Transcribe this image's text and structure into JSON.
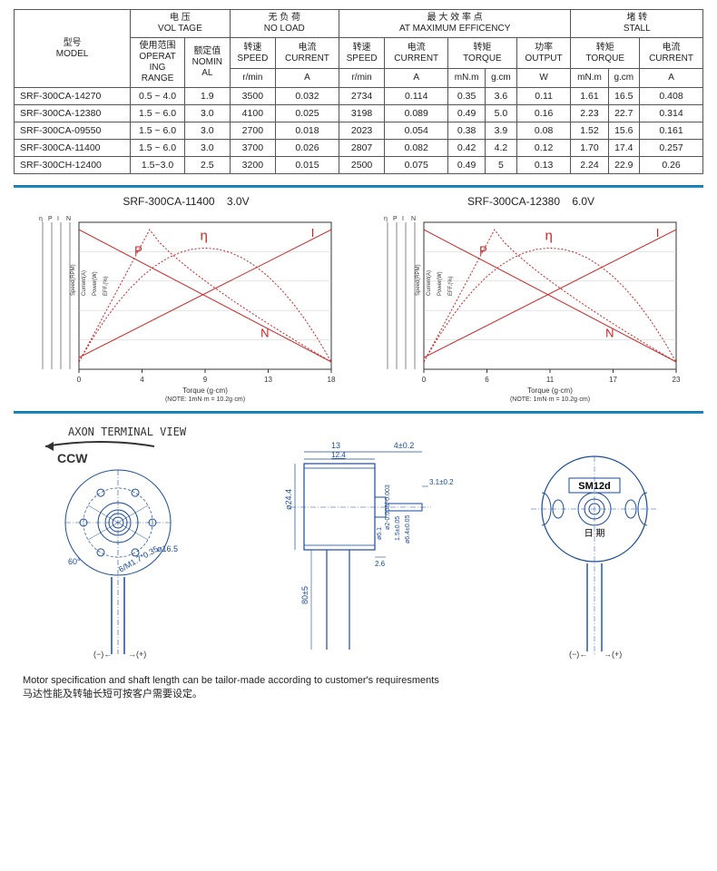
{
  "table": {
    "headers": {
      "model_cn": "型号",
      "model_en": "MODEL",
      "voltage_cn": "电 压",
      "voltage_en": "VOL TAGE",
      "noload_cn": "无 负 荷",
      "noload_en": "NO LOAD",
      "maxeff_cn": "最 大 效 率 点",
      "maxeff_en": "AT MAXIMUM EFFICENCY",
      "stall_cn": "堵 转",
      "stall_en": "STALL",
      "oper_range_cn": "使用范围",
      "oper_range_en1": "OPERAT",
      "oper_range_en2": "ING",
      "oper_range_en3": "RANGE",
      "nominal_cn": "额定值",
      "nominal_en1": "NOMIN",
      "nominal_en2": "AL",
      "speed_cn": "转速",
      "speed_en": "SPEED",
      "current_cn": "电流",
      "current_en": "CURRENT",
      "torque_cn": "转矩",
      "torque_en": "TORQUE",
      "output_cn": "功率",
      "output_en": "OUTPUT",
      "u_rmin": "r/min",
      "u_A": "A",
      "u_mNm": "mN.m",
      "u_gcm": "g.cm",
      "u_W": "W"
    },
    "rows": [
      {
        "model": "SRF-300CA-14270",
        "range": "0.5 ~ 4.0",
        "nom": "1.9",
        "nl_spd": "3500",
        "nl_cur": "0.032",
        "me_spd": "2734",
        "me_cur": "0.114",
        "me_tq_mn": "0.35",
        "me_tq_g": "3.6",
        "me_out": "0.11",
        "st_tq_mn": "1.61",
        "st_tq_g": "16.5",
        "st_cur": "0.408"
      },
      {
        "model": "SRF-300CA-12380",
        "range": "1.5 ~ 6.0",
        "nom": "3.0",
        "nl_spd": "4100",
        "nl_cur": "0.025",
        "me_spd": "3198",
        "me_cur": "0.089",
        "me_tq_mn": "0.49",
        "me_tq_g": "5.0",
        "me_out": "0.16",
        "st_tq_mn": "2.23",
        "st_tq_g": "22.7",
        "st_cur": "0.314"
      },
      {
        "model": "SRF-300CA-09550",
        "range": "1.5 ~ 6.0",
        "nom": "3.0",
        "nl_spd": "2700",
        "nl_cur": "0.018",
        "me_spd": "2023",
        "me_cur": "0.054",
        "me_tq_mn": "0.38",
        "me_tq_g": "3.9",
        "me_out": "0.08",
        "st_tq_mn": "1.52",
        "st_tq_g": "15.6",
        "st_cur": "0.161"
      },
      {
        "model": "SRF-300CA-11400",
        "range": "1.5 ~ 6.0",
        "nom": "3.0",
        "nl_spd": "3700",
        "nl_cur": "0.026",
        "me_spd": "2807",
        "me_cur": "0.082",
        "me_tq_mn": "0.42",
        "me_tq_g": "4.2",
        "me_out": "0.12",
        "st_tq_mn": "1.70",
        "st_tq_g": "17.4",
        "st_cur": "0.257"
      },
      {
        "model": "SRF-300CH-12400",
        "range": "1.5~3.0",
        "nom": "2.5",
        "nl_spd": "3200",
        "nl_cur": "0.015",
        "me_spd": "2500",
        "me_cur": "0.075",
        "me_tq_mn": "0.49",
        "me_tq_g": "5",
        "me_out": "0.13",
        "st_tq_mn": "2.24",
        "st_tq_g": "22.9",
        "st_cur": "0.26"
      }
    ]
  },
  "charts": {
    "left": {
      "title_model": "SRF-300CA-11400",
      "title_volt": "3.0V",
      "x_label": "Torque (g·cm)",
      "note": "(NOTE: 1mN·m = 10.2g·cm)",
      "x_ticks": [
        "0",
        "4",
        "9",
        "13",
        "18"
      ],
      "legend_P": "P",
      "legend_eta": "η",
      "legend_I": "I",
      "legend_N": "N",
      "y_left_labels": [
        "η",
        "P",
        "I",
        "N"
      ],
      "y_left_label_eff": "EFF.(%)",
      "y_left_label_pow": "Power(W)",
      "y_left_label_cur": "Current(A)",
      "y_left_label_spd": "Speed(RPM)"
    },
    "right": {
      "title_model": "SRF-300CA-12380",
      "title_volt": "6.0V",
      "x_label": "Torque (g·cm)",
      "note": "(NOTE: 1mN·m = 10.2g·cm)",
      "x_ticks": [
        "0",
        "6",
        "11",
        "17",
        "23"
      ],
      "legend_P": "P",
      "legend_eta": "η",
      "legend_I": "I",
      "legend_N": "N"
    },
    "colors": {
      "axis": "#333333",
      "grid": "#cccccc",
      "P_color": "#cc2222",
      "eta_color": "#cc2222",
      "I_color": "#cc2222",
      "N_color": "#cc2222",
      "dotted": "2,2"
    }
  },
  "diagrams": {
    "axon_title": "AXON TERMINAL VIEW",
    "ccw": "CCW",
    "dim_phi165": "ø16.5",
    "dim_6m17": "6/M1.7*0.35",
    "dim_60deg": "60°",
    "dim_13": "13",
    "dim_124": "12.4",
    "dim_4pm02": "4±0.2",
    "dim_31pm02": "3.1±0.2",
    "dim_244": "ø24.4",
    "dim_phi61": "ø6.1",
    "dim_phi2": "ø2-0.008/-0.003",
    "dim_26": "2.6",
    "dim_15pm005": "1.5±0.05",
    "dim_64pm005": "ø6.4±0.05",
    "dim_80pm5": "80±5",
    "sm12d": "SM12d",
    "riqi": "日 期",
    "minus": "(−)",
    "plus": "(+)",
    "plus_dir": "→",
    "minus_dir": "←",
    "drawing_color": "#1a4b9c"
  },
  "footer": {
    "en": "Motor specification and shaft length can be tailor-made according to customer's requiresments",
    "cn": "马达性能及转轴长短可按客户需要设定。"
  }
}
